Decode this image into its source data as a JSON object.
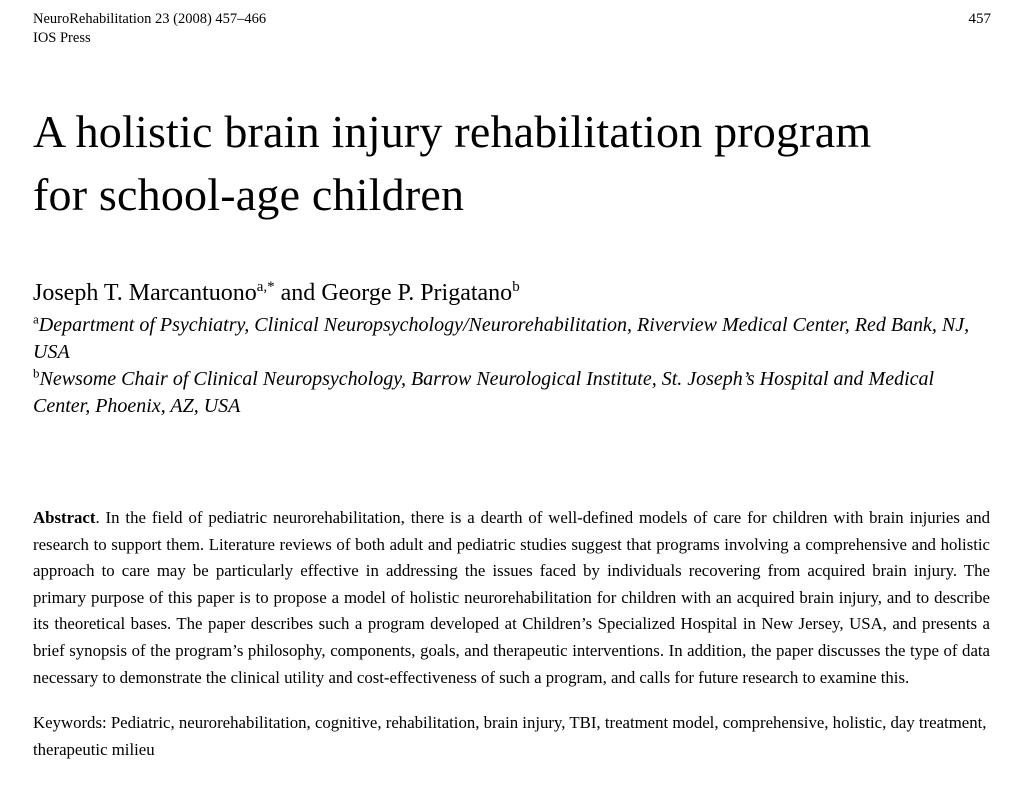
{
  "header": {
    "journal_line": "NeuroRehabilitation 23 (2008) 457–466",
    "publisher": "IOS Press",
    "page_number": "457"
  },
  "title": {
    "line1": "A holistic brain injury rehabilitation program",
    "line2": "for school-age children"
  },
  "authors": {
    "author1": "Joseph T. Marcantuono",
    "author1_sup": "a,*",
    "separator": " and ",
    "author2": "George P. Prigatano",
    "author2_sup": "b"
  },
  "affiliations": [
    {
      "sup": "a",
      "text": "Department of Psychiatry, Clinical Neuropsychology/Neurorehabilitation, Riverview Medical Center, Red Bank, NJ, USA"
    },
    {
      "sup": "b",
      "text": "Newsome Chair of Clinical Neuropsychology, Barrow Neurological Institute, St. Joseph’s Hospital and Medical Center, Phoenix, AZ, USA"
    }
  ],
  "abstract": {
    "label": "Abstract",
    "text": ". In the field of pediatric neurorehabilitation, there is a dearth of well-defined models of care for children with brain injuries and research to support them.  Literature reviews of both adult and pediatric studies suggest that programs involving a comprehensive and holistic approach to care may be particularly effective in addressing the issues faced by individuals recovering from acquired brain injury.  The primary purpose of this paper is to propose a model of holistic neurorehabilitation for children with an acquired brain injury, and to describe its theoretical bases.  The paper describes such a program developed at Children’s Specialized Hospital in New Jersey, USA, and presents a brief synopsis of the program’s philosophy, components, goals, and therapeutic interventions.  In addition, the paper discusses the type of data necessary to demonstrate the clinical utility and cost-effectiveness of such a program, and calls for future research to examine this."
  },
  "keywords": "Keywords: Pediatric, neurorehabilitation, cognitive, rehabilitation, brain injury, TBI, treatment model, comprehensive, holistic, day treatment, therapeutic milieu"
}
